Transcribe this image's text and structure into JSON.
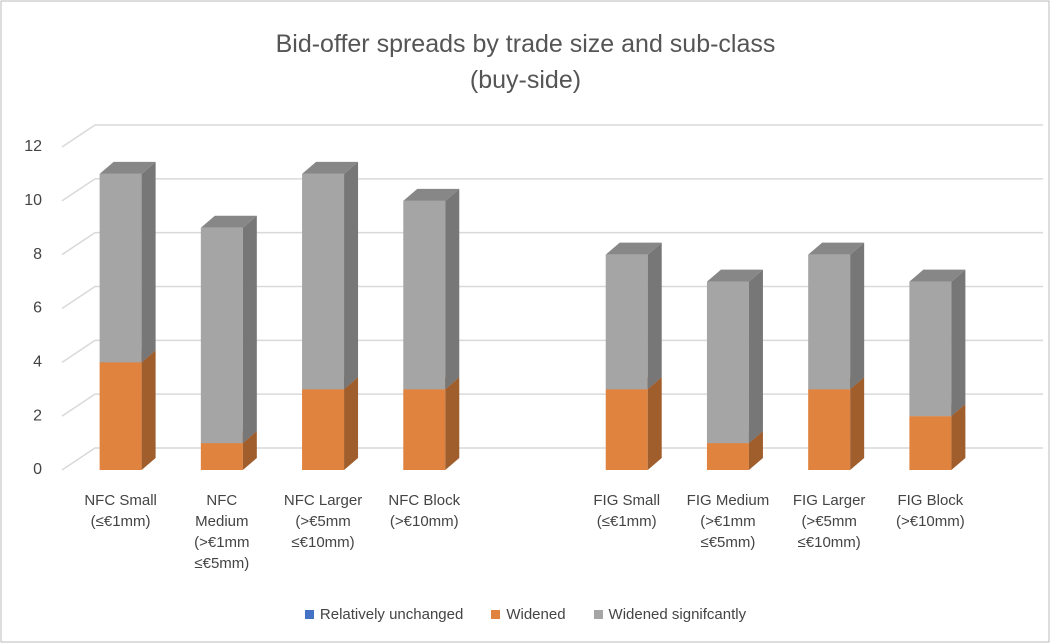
{
  "chart_data": {
    "type": "bar3d_stacked",
    "title": "Bid-offer spreads by trade size and sub-class\n(buy-side)",
    "categories": [
      "NFC Small\n(≤€1mm)",
      "NFC\nMedium\n(>€1mm\n≤€5mm)",
      "NFC Larger\n(>€5mm\n≤€10mm)",
      "NFC Block\n(>€10mm)",
      null,
      "FIG Small\n(≤€1mm)",
      "FIG Medium\n(>€1mm\n≤€5mm)",
      "FIG Larger\n(>€5mm\n≤€10mm)",
      "FIG Block\n(>€10mm)"
    ],
    "series": [
      {
        "name": "Relatively unchanged",
        "color": "#4472c4",
        "values": [
          0,
          0,
          0,
          0,
          null,
          0,
          0,
          0,
          0
        ]
      },
      {
        "name": "Widened",
        "color": "#e0833f",
        "values": [
          4,
          1,
          3,
          3,
          null,
          3,
          1,
          3,
          2
        ]
      },
      {
        "name": "Widened signifcantly",
        "color": "#a5a5a5",
        "values": [
          7,
          8,
          8,
          7,
          null,
          5,
          6,
          5,
          5
        ]
      }
    ],
    "ylim": [
      0,
      12
    ],
    "yticks": [
      0,
      2,
      4,
      6,
      8,
      10,
      12
    ],
    "grid": true,
    "legend": "bottom"
  }
}
